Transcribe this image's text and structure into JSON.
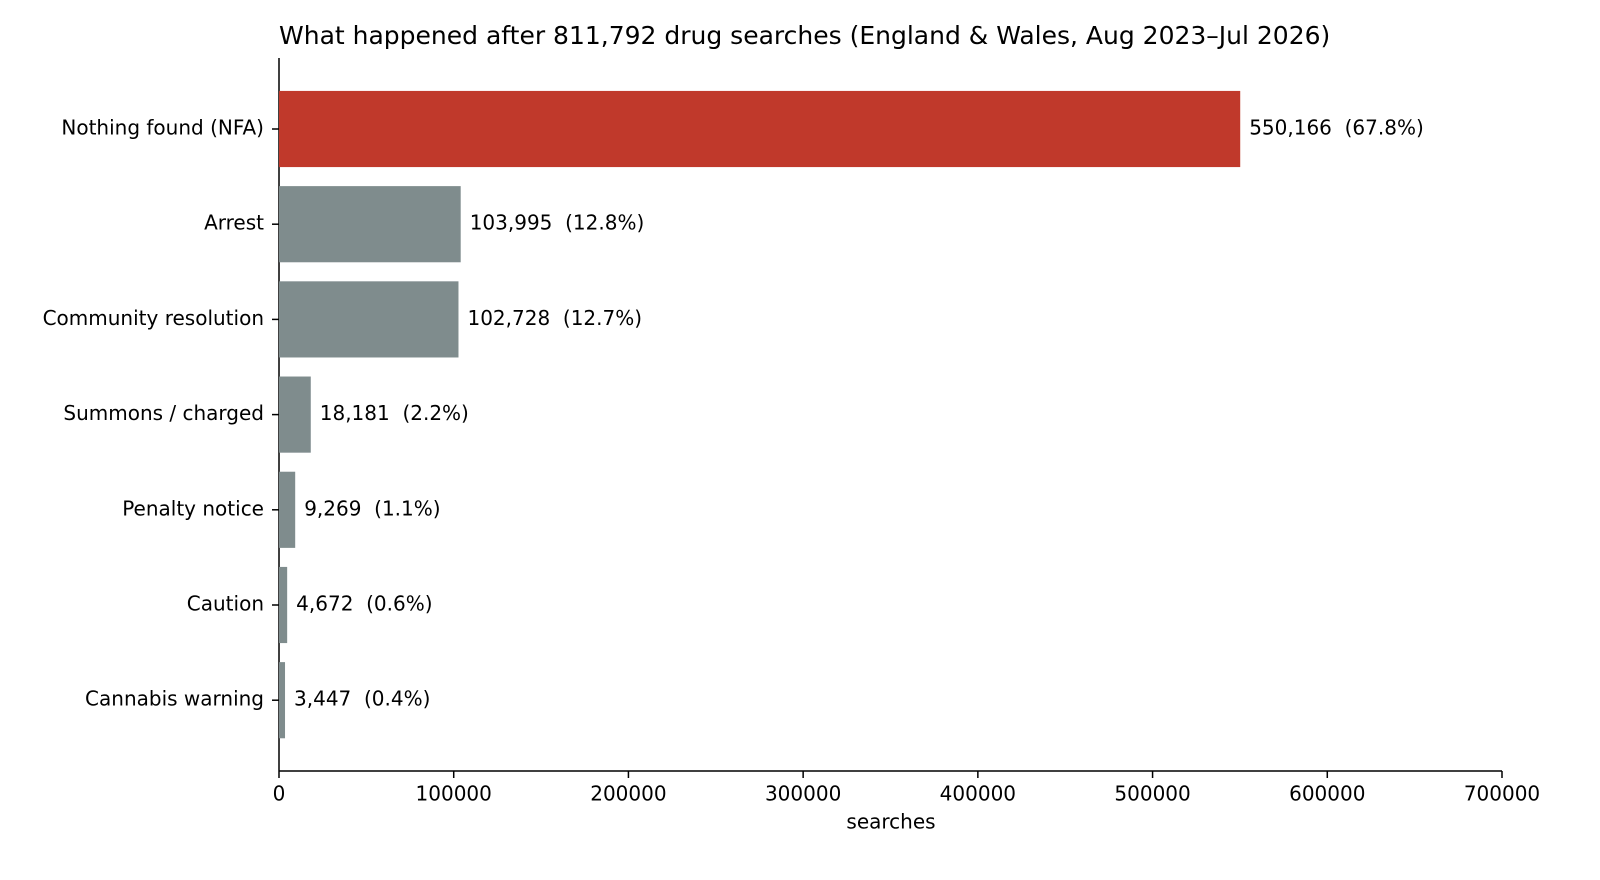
{
  "chart_data": {
    "type": "barh",
    "title": "What happened after 811,792 drug searches (England & Wales, Aug 2023–Jul 2026)",
    "x_label": "searches",
    "categories": [
      "Nothing found (NFA)",
      "Arrest",
      "Community resolution",
      "Summons / charged",
      "Penalty notice",
      "Caution",
      "Cannabis warning"
    ],
    "values": [
      550166,
      103995,
      102728,
      18181,
      9269,
      4672,
      3447
    ],
    "value_labels": [
      "550,166  (67.8%)",
      "103,995  (12.8%)",
      "102,728  (12.7%)",
      "18,181  (2.2%)",
      "9,269  (1.1%)",
      "4,672  (0.6%)",
      "3,447  (0.4%)"
    ],
    "colors": [
      "#c0392b",
      "#7f8c8d",
      "#7f8c8d",
      "#7f8c8d",
      "#7f8c8d",
      "#7f8c8d",
      "#7f8c8d"
    ],
    "xlim": [
      0,
      700000
    ],
    "xticks": [
      0,
      100000,
      200000,
      300000,
      400000,
      500000,
      600000,
      700000
    ],
    "grid": false
  }
}
